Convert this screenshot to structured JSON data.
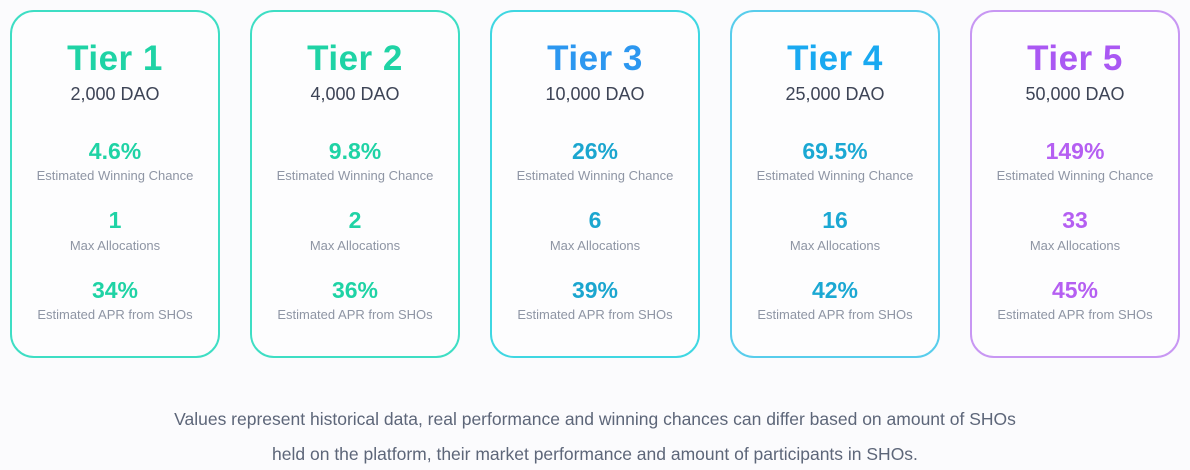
{
  "tiers": [
    {
      "name": "Tier 1",
      "dao": "2,000 DAO",
      "title_color": "#1fd3a5",
      "value_color": "#1fd3a5",
      "border_color": "#3edec4",
      "stats": [
        {
          "value": "4.6%",
          "label": "Estimated Winning Chance"
        },
        {
          "value": "1",
          "label": "Max Allocations"
        },
        {
          "value": "34%",
          "label": "Estimated APR from SHOs"
        }
      ]
    },
    {
      "name": "Tier 2",
      "dao": "4,000 DAO",
      "title_color": "#1fd3a5",
      "value_color": "#1fd3a5",
      "border_color": "#3edec4",
      "stats": [
        {
          "value": "9.8%",
          "label": "Estimated Winning Chance"
        },
        {
          "value": "2",
          "label": "Max Allocations"
        },
        {
          "value": "36%",
          "label": "Estimated APR from SHOs"
        }
      ]
    },
    {
      "name": "Tier 3",
      "dao": "10,000 DAO",
      "title_color": "#2c97f0",
      "value_color": "#1ba6cf",
      "border_color": "#3fd7e2",
      "stats": [
        {
          "value": "26%",
          "label": "Estimated Winning Chance"
        },
        {
          "value": "6",
          "label": "Max Allocations"
        },
        {
          "value": "39%",
          "label": "Estimated APR from SHOs"
        }
      ]
    },
    {
      "name": "Tier 4",
      "dao": "25,000 DAO",
      "title_color": "#19a9f1",
      "value_color": "#1ba8d3",
      "border_color": "#58cdec",
      "stats": [
        {
          "value": "69.5%",
          "label": "Estimated Winning Chance"
        },
        {
          "value": "16",
          "label": "Max Allocations"
        },
        {
          "value": "42%",
          "label": "Estimated APR from SHOs"
        }
      ]
    },
    {
      "name": "Tier 5",
      "dao": "50,000 DAO",
      "title_color": "#aa58f3",
      "value_color": "#b55ff2",
      "border_color": "#c897f3",
      "stats": [
        {
          "value": "149%",
          "label": "Estimated Winning Chance"
        },
        {
          "value": "33",
          "label": "Max Allocations"
        },
        {
          "value": "45%",
          "label": "Estimated APR from SHOs"
        }
      ]
    }
  ],
  "footer": {
    "line1": "Values represent historical data, real performance and winning chances can differ based on amount of SHOs",
    "line2": "held on the platform, their market performance and amount of participants in SHOs."
  }
}
